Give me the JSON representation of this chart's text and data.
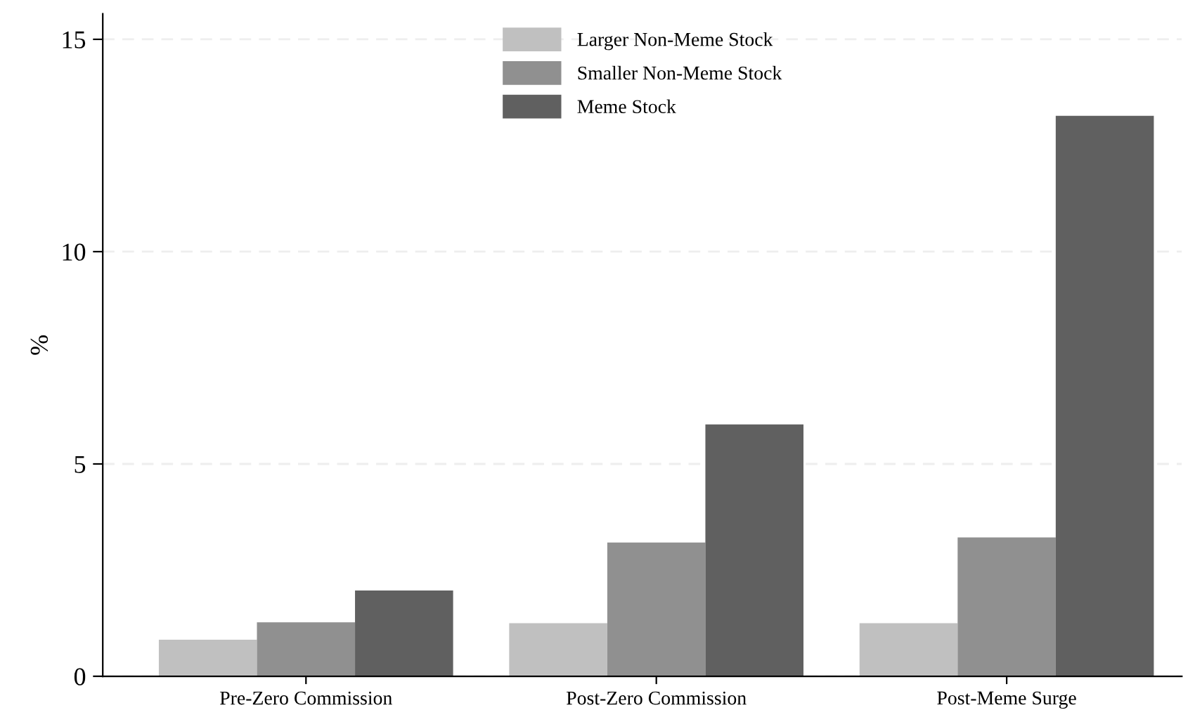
{
  "chart_data": {
    "type": "bar",
    "ylabel": "%",
    "categories": [
      "Pre-Zero Commission",
      "Post-Zero Commission",
      "Post-Meme Surge"
    ],
    "series": [
      {
        "name": "Larger Non-Meme Stock",
        "color": "#c0c0c0",
        "values": [
          0.86,
          1.25,
          1.25
        ]
      },
      {
        "name": "Smaller Non-Meme Stock",
        "color": "#909090",
        "values": [
          1.27,
          3.15,
          3.27
        ]
      },
      {
        "name": "Meme Stock",
        "color": "#606060",
        "values": [
          2.02,
          5.93,
          13.2
        ]
      }
    ],
    "ylim": [
      0,
      15.6
    ],
    "yticks": [
      0,
      5,
      10,
      15
    ],
    "grid": "y",
    "legend": "top"
  }
}
